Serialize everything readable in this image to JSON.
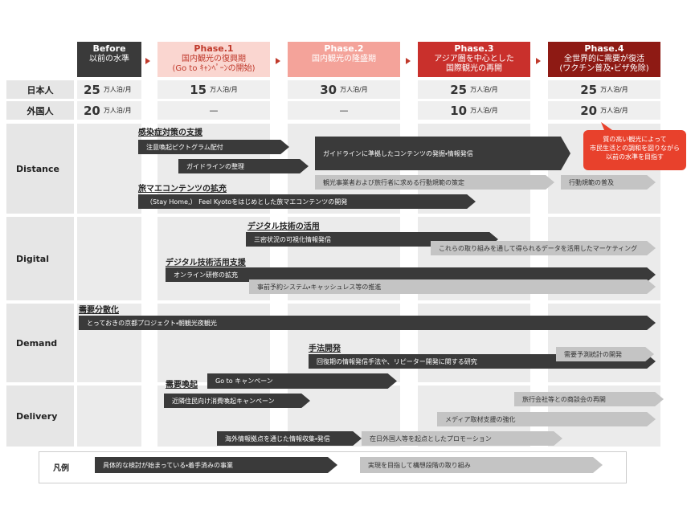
{
  "header": {
    "phases": [
      {
        "title": "Before",
        "lines": [
          "以前の水準"
        ]
      },
      {
        "title": "Phase.1",
        "lines": [
          "国内観光の復興期",
          "(Go to ｷｬﾝﾍﾟｰﾝの開始)"
        ]
      },
      {
        "title": "Phase.2",
        "lines": [
          "国内観光の隆盛期"
        ]
      },
      {
        "title": "Phase.3",
        "lines": [
          "アジア圏を中心とした",
          "国際観光の再開"
        ]
      },
      {
        "title": "Phase.4",
        "lines": [
          "全世界的に需要が復活",
          "(ワクチン普及・ビザ免除)"
        ]
      }
    ]
  },
  "visitors": {
    "unit": "万人泊/月",
    "rows": [
      {
        "label": "日本人",
        "cells": [
          25,
          15,
          30,
          25,
          25
        ]
      },
      {
        "label": "外国人",
        "cells": [
          20,
          "—",
          "—",
          10,
          20
        ]
      }
    ]
  },
  "sections": [
    {
      "name": "Distance"
    },
    {
      "name": "Digital"
    },
    {
      "name": "Demand"
    },
    {
      "name": "Delivery"
    }
  ],
  "headings": [
    "感染症対策の支援",
    "旅マエコンテンツの拡充",
    "デジタル技術の活用",
    "デジタル技術活用支援",
    "需要分散化",
    "手法開発",
    "需要喚起"
  ],
  "arrows": [
    {
      "text": "注意喚起ピクトグラム配付",
      "kind": "dark"
    },
    {
      "text": "ガイドラインの整理",
      "kind": "dark"
    },
    {
      "text": "ガイドラインに準拠したコンテンツの発掘・情報発信",
      "kind": "dark"
    },
    {
      "text": "観光事業者および旅行者に求める行動規範の策定",
      "kind": "gray"
    },
    {
      "text": "行動規範の普及",
      "kind": "gray"
    },
    {
      "text": "（Stay Home,） Feel Kyotoをはじめとした旅マエコンテンツの開発",
      "kind": "dark"
    },
    {
      "text": "三密状況の可視化情報発信",
      "kind": "dark"
    },
    {
      "text": "これらの取り組みを通して得られるデータを活用したマーケティング",
      "kind": "gray"
    },
    {
      "text": "オンライン研修の拡充",
      "kind": "dark"
    },
    {
      "text": "事前予約システム・キャッシュレス等の推進",
      "kind": "gray"
    },
    {
      "text": "とっておきの京都プロジェクト・朝観光夜観光",
      "kind": "dark"
    },
    {
      "text": "回復期の情報発信手法や、リピーター開発に関する研究",
      "kind": "dark"
    },
    {
      "text": "需要予測統計の開発",
      "kind": "gray"
    },
    {
      "text": "Go to キャンペーン",
      "kind": "dark"
    },
    {
      "text": "近隣住民向け消費喚起キャンペーン",
      "kind": "dark"
    },
    {
      "text": "旅行会社等との商談会の再開",
      "kind": "gray"
    },
    {
      "text": "メディア取材支援の強化",
      "kind": "gray"
    },
    {
      "text": "海外情報拠点を通じた情報収集・発信",
      "kind": "dark"
    },
    {
      "text": "在日外国人等を起点としたプロモーション",
      "kind": "gray"
    }
  ],
  "callout": {
    "lines": [
      "質の高い観光によって",
      "市民生活との調和を図りながら",
      "以前の水準を目指す"
    ]
  },
  "legend": {
    "title": "凡例",
    "items": [
      {
        "text": "具体的な検討が始まっている・着手済みの事業",
        "kind": "dark"
      },
      {
        "text": "実現を目指して構想段階の取り組み",
        "kind": "gray"
      }
    ]
  }
}
